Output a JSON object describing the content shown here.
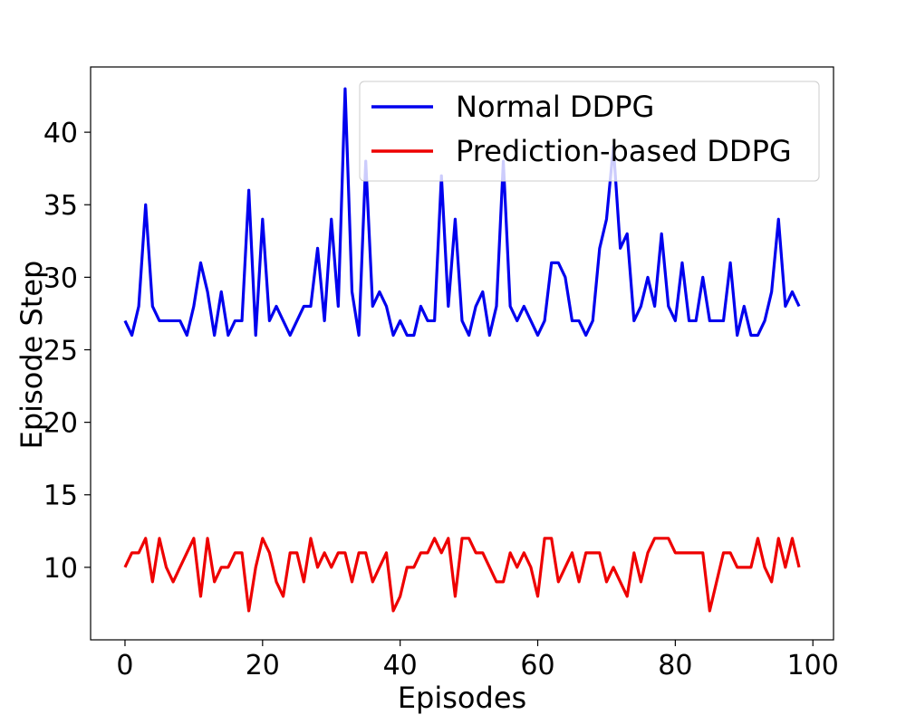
{
  "chart_data": {
    "type": "line",
    "xlabel": "Episodes",
    "ylabel": "Episode Step",
    "xlim": [
      -5,
      103
    ],
    "ylim": [
      5,
      44.5
    ],
    "xticks": [
      0,
      20,
      40,
      60,
      80,
      100
    ],
    "yticks": [
      10,
      15,
      20,
      25,
      30,
      35,
      40
    ],
    "grid": false,
    "legend_position": "top-right",
    "x_start": 0,
    "series": [
      {
        "name": "Normal DDPG",
        "color": "#0000ee",
        "values": [
          27,
          26,
          28,
          35,
          28,
          27,
          27,
          27,
          27,
          26,
          28,
          31,
          29,
          26,
          29,
          26,
          27,
          27,
          36,
          26,
          34,
          27,
          28,
          27,
          26,
          27,
          28,
          28,
          32,
          27,
          34,
          28,
          43,
          29,
          26,
          38,
          28,
          29,
          28,
          26,
          27,
          26,
          26,
          28,
          27,
          27,
          37,
          28,
          34,
          27,
          26,
          28,
          29,
          26,
          28,
          38,
          28,
          27,
          28,
          27,
          26,
          27,
          31,
          31,
          30,
          27,
          27,
          26,
          27,
          32,
          34,
          39,
          32,
          33,
          27,
          28,
          30,
          28,
          33,
          28,
          27,
          31,
          27,
          27,
          30,
          27,
          27,
          27,
          31,
          26,
          28,
          26,
          26,
          27,
          29,
          34,
          28,
          29,
          28
        ]
      },
      {
        "name": "Prediction-based DDPG",
        "color": "#ee0000",
        "values": [
          10,
          11,
          11,
          12,
          9,
          12,
          10,
          9,
          10,
          11,
          12,
          8,
          12,
          9,
          10,
          10,
          11,
          11,
          7,
          10,
          12,
          11,
          9,
          8,
          11,
          11,
          9,
          12,
          10,
          11,
          10,
          11,
          11,
          9,
          11,
          11,
          9,
          10,
          11,
          7,
          8,
          10,
          10,
          11,
          11,
          12,
          11,
          12,
          8,
          12,
          12,
          11,
          11,
          10,
          9,
          9,
          11,
          10,
          11,
          10,
          8,
          12,
          12,
          9,
          10,
          11,
          9,
          11,
          11,
          11,
          9,
          10,
          9,
          8,
          11,
          9,
          11,
          12,
          12,
          12,
          11,
          11,
          11,
          11,
          11,
          7,
          9,
          11,
          11,
          10,
          10,
          10,
          12,
          10,
          9,
          12,
          10,
          12,
          10
        ]
      }
    ]
  }
}
